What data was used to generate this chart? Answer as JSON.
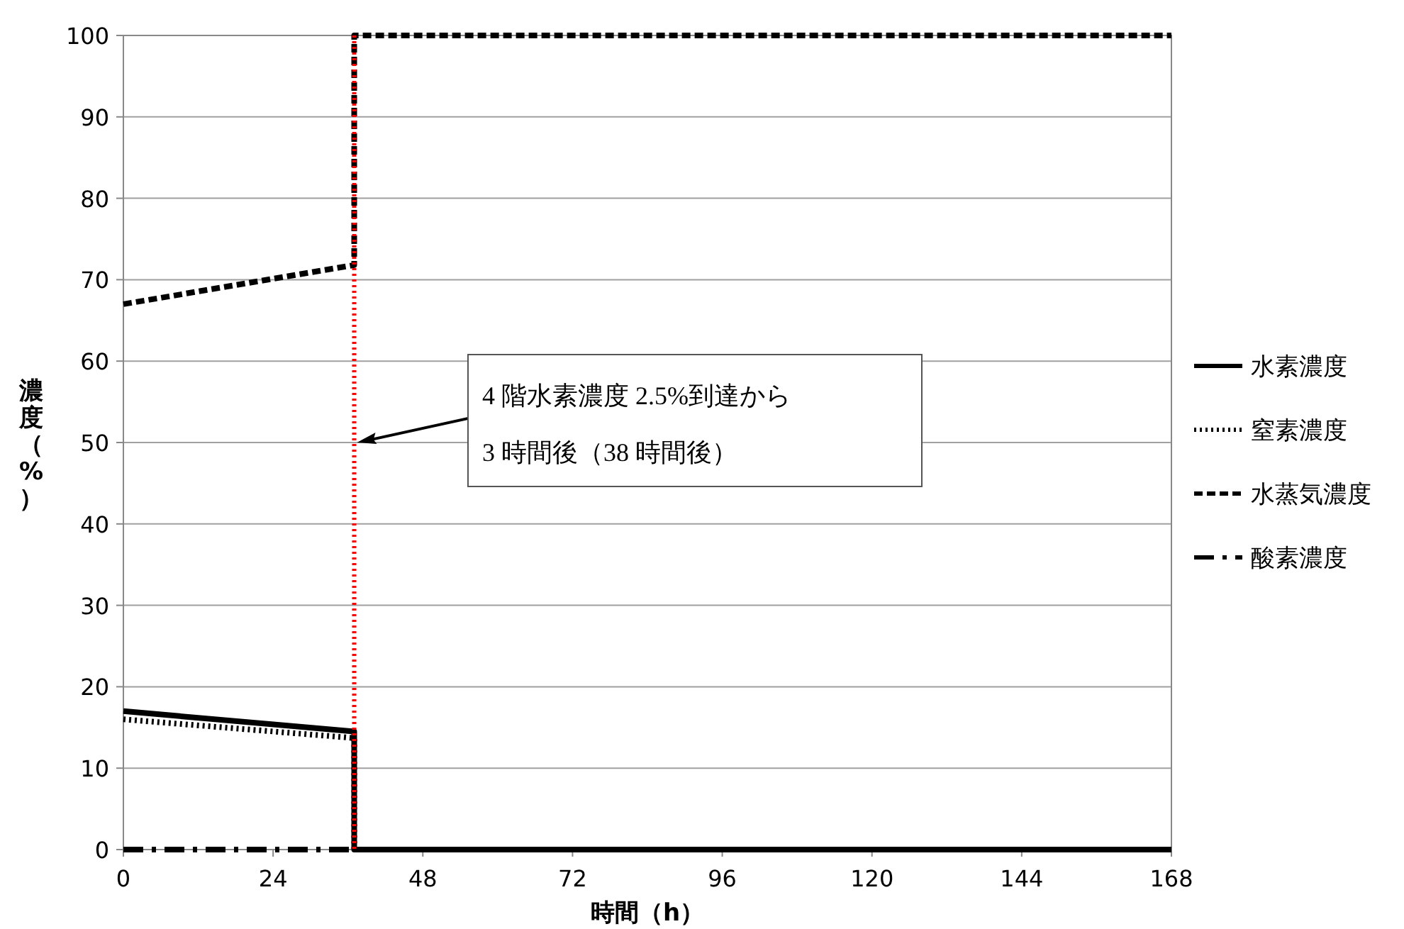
{
  "chart_data": {
    "type": "line",
    "xlabel": "時間（h）",
    "ylabel": "濃度（%）",
    "xlim": [
      0,
      168
    ],
    "xticks": [
      0,
      24,
      48,
      72,
      96,
      120,
      144,
      168
    ],
    "ylim": [
      0,
      100
    ],
    "yticks": [
      0,
      10,
      20,
      30,
      40,
      50,
      60,
      70,
      80,
      90,
      100
    ],
    "grid": "y",
    "legend": "right",
    "marker": "none",
    "series": [
      {
        "name": "水素濃度",
        "color": "#000000",
        "line_style": "solid",
        "x": [
          0,
          37,
          37,
          168
        ],
        "values": [
          17,
          14.5,
          0,
          0
        ]
      },
      {
        "name": "窒素濃度",
        "color": "#000000",
        "line_style": "dotted",
        "x": [
          0,
          37,
          37,
          168
        ],
        "values": [
          16,
          13.7,
          0,
          0
        ]
      },
      {
        "name": "水蒸気濃度",
        "color": "#000000",
        "line_style": "dashed",
        "x": [
          0,
          37,
          37,
          168
        ],
        "values": [
          67,
          71.8,
          100,
          100
        ]
      },
      {
        "name": "酸素濃度",
        "color": "#000000",
        "line_style": "dashdot",
        "x": [
          0,
          37
        ],
        "values": [
          0,
          0
        ]
      }
    ],
    "ref_lines": [
      {
        "axis": "x",
        "value": 37,
        "color": "#ff0000",
        "line_style": "dotted"
      }
    ],
    "annotations": [
      "4 階水素濃度 2.5%到達から\n3 時間後（38 時間後）"
    ]
  }
}
